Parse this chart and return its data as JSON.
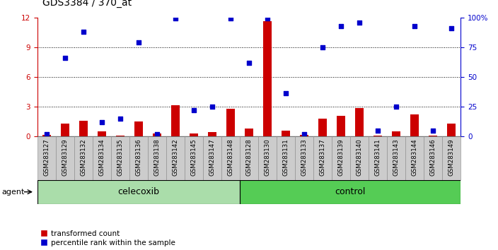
{
  "title": "GDS3384 / 370_at",
  "samples": [
    "GSM283127",
    "GSM283129",
    "GSM283132",
    "GSM283134",
    "GSM283135",
    "GSM283136",
    "GSM283138",
    "GSM283142",
    "GSM283145",
    "GSM283147",
    "GSM283148",
    "GSM283128",
    "GSM283130",
    "GSM283131",
    "GSM283133",
    "GSM283137",
    "GSM283139",
    "GSM283140",
    "GSM283141",
    "GSM283143",
    "GSM283144",
    "GSM283146",
    "GSM283149"
  ],
  "red_values": [
    0.15,
    1.3,
    1.6,
    0.5,
    0.1,
    1.5,
    0.3,
    3.1,
    0.3,
    0.4,
    2.8,
    0.8,
    11.6,
    0.6,
    0.15,
    1.8,
    2.1,
    2.85,
    0.1,
    0.5,
    2.2,
    0.1,
    1.3
  ],
  "blue_percentiles": [
    2,
    66,
    88,
    12,
    15,
    79,
    2,
    99,
    22,
    25,
    99,
    62,
    99,
    36,
    2,
    75,
    93,
    96,
    5,
    25,
    93,
    5,
    91
  ],
  "celecoxib_count": 11,
  "control_count": 12,
  "ylim_left": [
    0,
    12
  ],
  "ylim_right": [
    0,
    100
  ],
  "yticks_left": [
    0,
    3,
    6,
    9,
    12
  ],
  "yticks_right": [
    0,
    25,
    50,
    75,
    100
  ],
  "grid_lines": [
    3,
    6,
    9
  ],
  "red_color": "#cc0000",
  "blue_color": "#0000cc",
  "celecoxib_color": "#aaddaa",
  "control_color": "#55cc55",
  "sample_box_color": "#cccccc",
  "sample_box_edge": "#888888",
  "title_fontsize": 10,
  "ytick_fontsize": 7.5,
  "xtick_fontsize": 6.2,
  "group_fontsize": 9,
  "legend_fontsize": 7.5,
  "agent_label": "agent",
  "celecoxib_label": "celecoxib",
  "control_label": "control",
  "legend_red": "transformed count",
  "legend_blue": "percentile rank within the sample"
}
